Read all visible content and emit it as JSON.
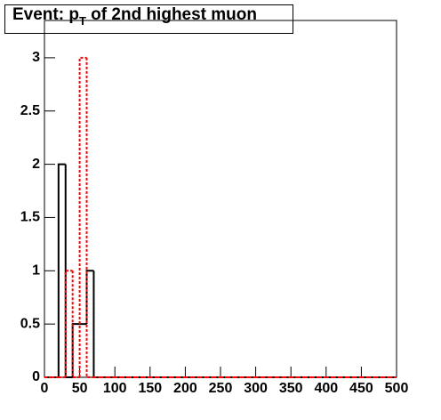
{
  "chart_data": {
    "type": "histogram",
    "title_parts": [
      "Event: p",
      "T",
      " of 2nd highest muon"
    ],
    "bins": [
      0,
      10,
      20,
      30,
      40,
      50,
      60,
      70,
      80,
      90,
      100,
      110,
      120,
      130,
      140,
      150,
      160,
      170,
      180,
      190,
      200,
      210,
      220,
      230,
      240,
      250,
      260,
      270,
      280,
      290,
      300,
      310,
      320,
      330,
      340,
      350,
      360,
      370,
      380,
      390,
      400,
      410,
      420,
      430,
      440,
      450,
      460,
      470,
      480,
      490,
      500
    ],
    "series": [
      {
        "color": "#000000",
        "dash": false,
        "values": [
          0,
          0,
          2,
          0,
          0.5,
          0.5,
          1,
          0,
          0,
          0,
          0,
          0,
          0,
          0,
          0,
          0,
          0,
          0,
          0,
          0,
          0,
          0,
          0,
          0,
          0,
          0,
          0,
          0,
          0,
          0,
          0,
          0,
          0,
          0,
          0,
          0,
          0,
          0,
          0,
          0,
          0,
          0,
          0,
          0,
          0,
          0,
          0,
          0,
          0,
          0
        ]
      },
      {
        "color": "#ff0000",
        "dash": true,
        "values": [
          0,
          0,
          0,
          1,
          0,
          3,
          0,
          0,
          0,
          0,
          0,
          0,
          0,
          0,
          0,
          0,
          0,
          0,
          0,
          0,
          0,
          0,
          0,
          0,
          0,
          0,
          0,
          0,
          0,
          0,
          0,
          0,
          0,
          0,
          0,
          0,
          0,
          0,
          0,
          0,
          0,
          0,
          0,
          0,
          0,
          0,
          0,
          0,
          0,
          0
        ]
      }
    ],
    "xlim": [
      0,
      500
    ],
    "xticks": [
      0,
      50,
      100,
      150,
      200,
      250,
      300,
      350,
      400,
      450,
      500
    ],
    "ylim": [
      0,
      3.35
    ],
    "yticks": [
      0,
      0.5,
      1,
      1.5,
      2,
      2.5,
      3
    ]
  }
}
